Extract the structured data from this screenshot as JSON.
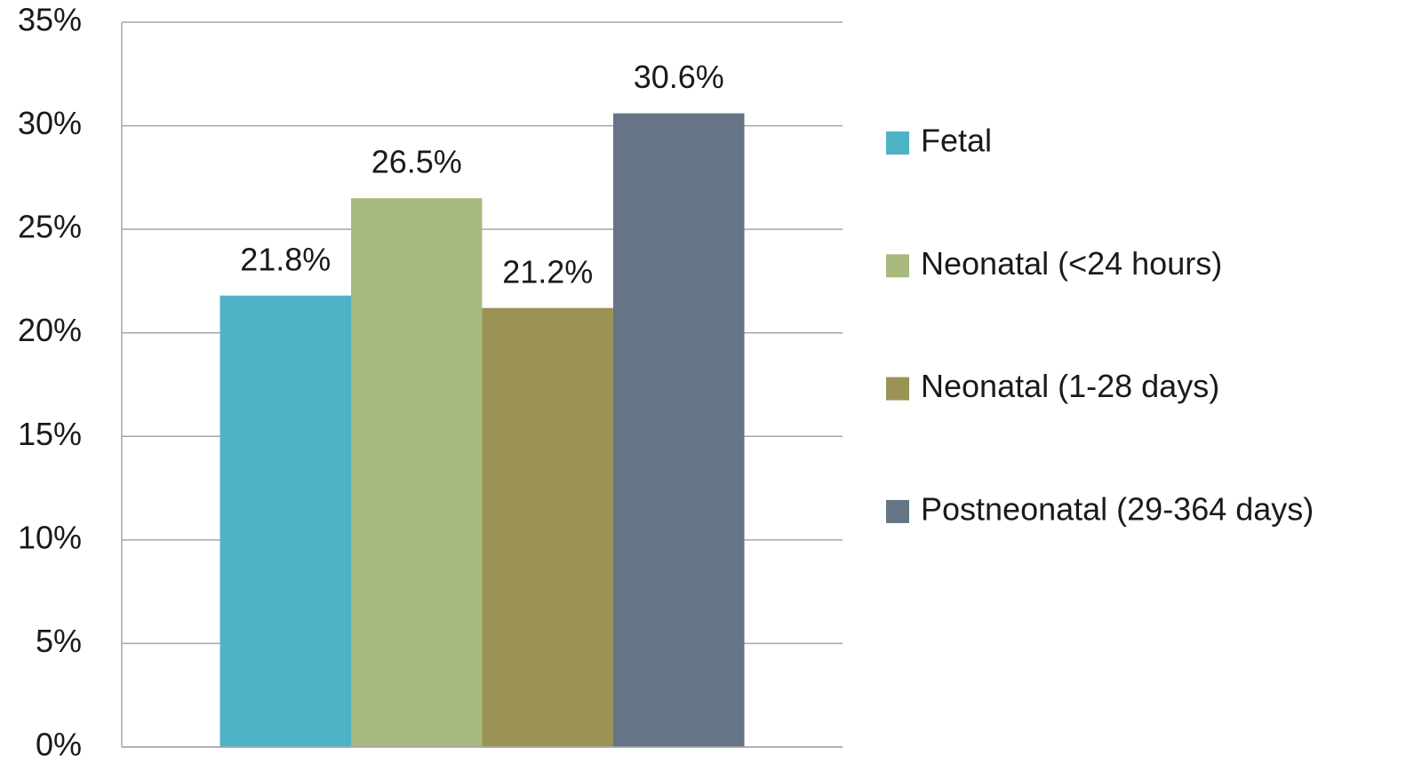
{
  "chart_data": {
    "type": "bar",
    "categories": [
      null
    ],
    "series": [
      {
        "name": "Fetal",
        "color": "#4fb3c8",
        "values": [
          21.8
        ],
        "value_labels": [
          "21.8%"
        ]
      },
      {
        "name": "Neonatal (<24 hours)",
        "color": "#a8b97f",
        "values": [
          26.5
        ],
        "value_labels": [
          "26.5%"
        ]
      },
      {
        "name": "Neonatal (1-28 days)",
        "color": "#9b9255",
        "values": [
          21.2
        ],
        "value_labels": [
          "21.2%"
        ]
      },
      {
        "name": "Postneonatal (29-364 days)",
        "color": "#657587",
        "values": [
          30.6
        ],
        "value_labels": [
          "30.6%"
        ]
      }
    ],
    "ylim": [
      0,
      35
    ],
    "yticks": [
      {
        "value": 0,
        "label": "0%"
      },
      {
        "value": 5,
        "label": "5%"
      },
      {
        "value": 10,
        "label": "10%"
      },
      {
        "value": 15,
        "label": "15%"
      },
      {
        "value": 20,
        "label": "20%"
      },
      {
        "value": 25,
        "label": "25%"
      },
      {
        "value": 30,
        "label": "30%"
      },
      {
        "value": 35,
        "label": "35%"
      }
    ],
    "grid": true,
    "legend": "right"
  }
}
